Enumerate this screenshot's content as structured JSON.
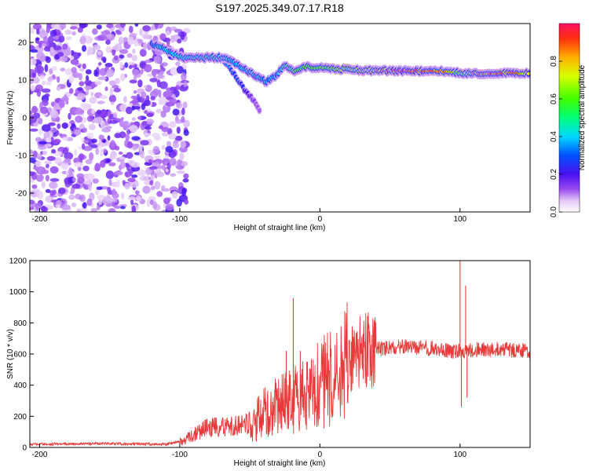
{
  "chart_data": [
    {
      "type": "heatmap",
      "title": "S197.2025.349.07.17.R18",
      "xlabel": "Height of straight line (km)",
      "ylabel": "Frequency (Hz)",
      "xlim": [
        -207,
        150
      ],
      "ylim": [
        -25,
        25
      ],
      "xticks": [
        -200,
        -100,
        0,
        100
      ],
      "xtick_labels": [
        "-200",
        "-100",
        "0",
        "100"
      ],
      "yticks": [
        -20,
        -10,
        0,
        10,
        20
      ],
      "ytick_labels": [
        "-20",
        "-10",
        "0",
        "10",
        "20"
      ],
      "colorbar": {
        "label": "Normalized spectral amplitude",
        "range": [
          0,
          1
        ],
        "ticks": [
          0.0,
          0.2,
          0.4,
          0.6,
          0.8
        ],
        "tick_labels": [
          "0.0",
          "0.2",
          "0.4",
          "0.6",
          "0.8"
        ]
      },
      "noise_region_x": [
        -207,
        -95
      ],
      "signal_ridge": [
        {
          "x": -120,
          "y": 19.5,
          "a": 0.3
        },
        {
          "x": -112,
          "y": 18.5,
          "a": 0.4
        },
        {
          "x": -105,
          "y": 17.0,
          "a": 0.4
        },
        {
          "x": -98,
          "y": 16.0,
          "a": 0.45
        },
        {
          "x": -90,
          "y": 15.8,
          "a": 0.5
        },
        {
          "x": -80,
          "y": 16.0,
          "a": 0.45
        },
        {
          "x": -72,
          "y": 16.0,
          "a": 0.45
        },
        {
          "x": -65,
          "y": 15.5,
          "a": 0.4
        },
        {
          "x": -58,
          "y": 14.0,
          "a": 0.4
        },
        {
          "x": -52,
          "y": 12.5,
          "a": 0.4
        },
        {
          "x": -45,
          "y": 11.0,
          "a": 0.4
        },
        {
          "x": -38,
          "y": 9.5,
          "a": 0.35
        },
        {
          "x": -32,
          "y": 11.0,
          "a": 0.35
        },
        {
          "x": -25,
          "y": 14.0,
          "a": 0.5
        },
        {
          "x": -18,
          "y": 12.5,
          "a": 0.55
        },
        {
          "x": -10,
          "y": 13.5,
          "a": 0.55
        },
        {
          "x": 0,
          "y": 13.2,
          "a": 0.6
        },
        {
          "x": 10,
          "y": 13.0,
          "a": 0.65
        },
        {
          "x": 20,
          "y": 12.8,
          "a": 0.7
        },
        {
          "x": 30,
          "y": 12.6,
          "a": 0.72
        },
        {
          "x": 40,
          "y": 12.5,
          "a": 0.78
        },
        {
          "x": 50,
          "y": 12.5,
          "a": 0.85
        },
        {
          "x": 60,
          "y": 12.4,
          "a": 0.9
        },
        {
          "x": 70,
          "y": 12.4,
          "a": 0.9
        },
        {
          "x": 80,
          "y": 12.4,
          "a": 0.88
        },
        {
          "x": 90,
          "y": 12.3,
          "a": 0.85
        },
        {
          "x": 98,
          "y": 12.0,
          "a": 0.6
        },
        {
          "x": 105,
          "y": 11.8,
          "a": 0.7
        },
        {
          "x": 115,
          "y": 11.8,
          "a": 0.85
        },
        {
          "x": 125,
          "y": 11.8,
          "a": 0.88
        },
        {
          "x": 135,
          "y": 11.8,
          "a": 0.85
        },
        {
          "x": 145,
          "y": 11.8,
          "a": 0.8
        },
        {
          "x": 150,
          "y": 11.8,
          "a": 0.8
        }
      ],
      "secondary_branch": [
        {
          "x": -68,
          "y": 15.0,
          "a": 0.35
        },
        {
          "x": -60,
          "y": 11.0,
          "a": 0.3
        },
        {
          "x": -55,
          "y": 8.0,
          "a": 0.25
        },
        {
          "x": -48,
          "y": 5.0,
          "a": 0.15
        },
        {
          "x": -42,
          "y": 1.0,
          "a": 0.1
        }
      ]
    },
    {
      "type": "line",
      "xlabel": "Height of straight line (km)",
      "ylabel": "SNR (10 * v/v)",
      "xlim": [
        -207,
        150
      ],
      "ylim": [
        0,
        1200
      ],
      "xticks": [
        -200,
        -100,
        0,
        100
      ],
      "xtick_labels": [
        "-200",
        "-100",
        "0",
        "100"
      ],
      "yticks": [
        0,
        200,
        400,
        600,
        800,
        1000,
        1200
      ],
      "ytick_labels": [
        "0",
        "200",
        "400",
        "600",
        "800",
        "1000",
        "1200"
      ],
      "color": "#e83a3a",
      "trend": [
        {
          "x": -207,
          "y": 20
        },
        {
          "x": -150,
          "y": 25
        },
        {
          "x": -110,
          "y": 20
        },
        {
          "x": -100,
          "y": 35
        },
        {
          "x": -90,
          "y": 80
        },
        {
          "x": -80,
          "y": 130
        },
        {
          "x": -70,
          "y": 130
        },
        {
          "x": -60,
          "y": 140
        },
        {
          "x": -50,
          "y": 160
        },
        {
          "x": -40,
          "y": 220
        },
        {
          "x": -30,
          "y": 260
        },
        {
          "x": -20,
          "y": 300
        },
        {
          "x": -10,
          "y": 350
        },
        {
          "x": 0,
          "y": 400
        },
        {
          "x": 10,
          "y": 470
        },
        {
          "x": 20,
          "y": 560
        },
        {
          "x": 30,
          "y": 610
        },
        {
          "x": 40,
          "y": 630
        },
        {
          "x": 50,
          "y": 640
        },
        {
          "x": 60,
          "y": 650
        },
        {
          "x": 70,
          "y": 640
        },
        {
          "x": 80,
          "y": 640
        },
        {
          "x": 90,
          "y": 620
        },
        {
          "x": 100,
          "y": 620
        },
        {
          "x": 110,
          "y": 625
        },
        {
          "x": 120,
          "y": 630
        },
        {
          "x": 130,
          "y": 630
        },
        {
          "x": 140,
          "y": 625
        },
        {
          "x": 150,
          "y": 620
        }
      ],
      "spikes": [
        {
          "x": -24,
          "y": 620
        },
        {
          "x": -19,
          "y": 960
        },
        {
          "x": -14,
          "y": 620
        },
        {
          "x": 87,
          "y": 620
        },
        {
          "x": 100,
          "y": 1200
        },
        {
          "x": 101,
          "y": 260
        },
        {
          "x": 104,
          "y": 1040
        },
        {
          "x": 105,
          "y": 320
        }
      ]
    }
  ]
}
